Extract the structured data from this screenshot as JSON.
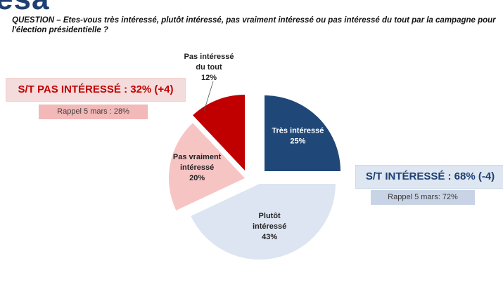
{
  "brand": {
    "logo_text": "esa"
  },
  "question": "QUESTION – Etes-vous très intéressé, plutôt intéressé, pas vraiment intéressé ou pas intéressé du tout par la campagne pour l'élection présidentielle ?",
  "summaries": {
    "not_interested": {
      "label": "S/T PAS INTÉRESSÉ : 32% (+4)",
      "recall": "Rappel 5 mars : 28%",
      "color": "#c00000"
    },
    "interested": {
      "label": "S/T INTÉRESSÉ : 68% (-4)",
      "recall": "Rappel 5 mars: 72%",
      "color": "#1f3f73"
    }
  },
  "chart_data": {
    "type": "pie",
    "title": "",
    "unit": "%",
    "slices": [
      {
        "name": "Très intéressé",
        "value": 25,
        "label_lines": [
          "Très intéressé",
          "25%"
        ],
        "color": "#1f4778",
        "text_color": "#ffffff"
      },
      {
        "name": "Plutôt intéressé",
        "value": 43,
        "label_lines": [
          "Plutôt",
          "intéressé",
          "43%"
        ],
        "color": "#dce5f1",
        "text_color": "#222222"
      },
      {
        "name": "Pas vraiment intéressé",
        "value": 20,
        "label_lines": [
          "Pas vraiment",
          "intéressé",
          "20%"
        ],
        "color": "#f7c4c4",
        "text_color": "#222222"
      },
      {
        "name": "Pas intéressé du tout",
        "value": 12,
        "label_lines": [
          "Pas intéressé",
          "du tout",
          "12%"
        ],
        "color": "#c00000",
        "text_color": "#222222"
      }
    ]
  }
}
